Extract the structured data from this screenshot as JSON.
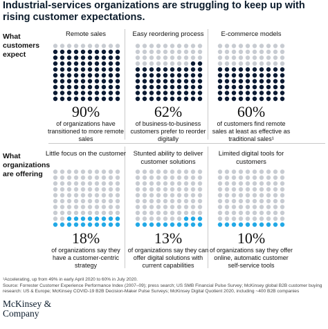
{
  "title": "Industrial-services organizations are struggling to keep up with rising customer expectations.",
  "rows": {
    "expect_label": "What customers expect",
    "offering_label": "What organizations are offering"
  },
  "colors": {
    "dark_filled": "#0b1b33",
    "light_empty": "#c8ccd2",
    "blue_filled": "#22a9e6"
  },
  "chart_data": [
    {
      "type": "waffle",
      "title": "Remote sales",
      "value": 90,
      "unit": "%",
      "value_label": "90%",
      "description": "of organizations have transitioned to more remote sales",
      "total": 100,
      "filled_color": "#0b1b33",
      "empty_color": "#c8ccd2"
    },
    {
      "type": "waffle",
      "title": "Easy reordering process",
      "value": 62,
      "unit": "%",
      "value_label": "62%",
      "description": "of business-to-business customers prefer to reorder digitally",
      "total": 100,
      "filled_color": "#0b1b33",
      "empty_color": "#c8ccd2"
    },
    {
      "type": "waffle",
      "title": "E-commerce models",
      "value": 60,
      "unit": "%",
      "value_label": "60%",
      "description": "of customers find remote sales at least as effective as traditional sales¹",
      "total": 100,
      "filled_color": "#0b1b33",
      "empty_color": "#c8ccd2"
    },
    {
      "type": "waffle",
      "title": "Little focus on the customer",
      "value": 18,
      "unit": "%",
      "value_label": "18%",
      "description": "of organizations say they have a customer-centric strategy",
      "total": 100,
      "filled_color": "#22a9e6",
      "empty_color": "#c8ccd2"
    },
    {
      "type": "waffle",
      "title": "Stunted ability to deliver customer solutions",
      "value": 13,
      "unit": "%",
      "value_label": "13%",
      "description": "of organizations say they can offer digital solutions with current capabilities",
      "total": 100,
      "filled_color": "#22a9e6",
      "empty_color": "#c8ccd2"
    },
    {
      "type": "waffle",
      "title": "Limited digital tools for customers",
      "value": 10,
      "unit": "%",
      "value_label": "10%",
      "description": "of organizations say they offer online, automatic customer self-service tools",
      "total": 100,
      "filled_color": "#22a9e6",
      "empty_color": "#c8ccd2"
    }
  ],
  "footnote": "¹Accelerating, up from 49% in early April 2020 to 60% in July 2020.",
  "source": "Source: Forrester Customer Experience Performance Index (2007–09); press search; US SMB Financial Pulse Survey; McKinsey global B2B customer buying research: US & Europe; McKinsey COVID-19 B2B Decision-Maker Pulse Surveys; McKinsey Digital Quotient 2020, including ~400 B2B companies",
  "logo_text": "McKinsey & Company"
}
